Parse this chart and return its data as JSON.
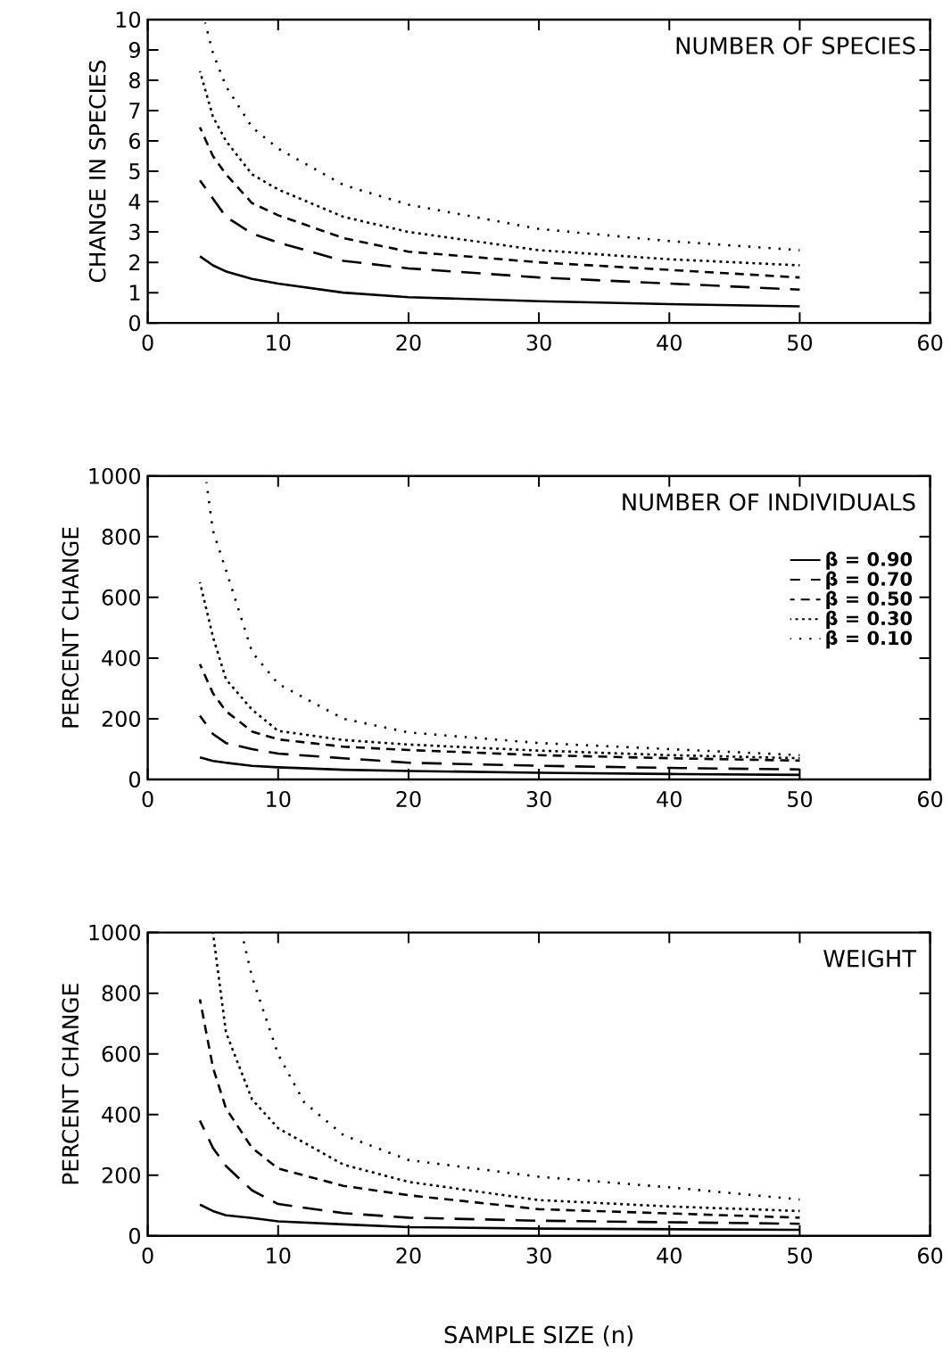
{
  "chart_data": [
    {
      "type": "line",
      "title": "NUMBER OF SPECIES",
      "ylabel": "CHANGE IN SPECIES",
      "xlim": [
        0,
        60
      ],
      "ylim": [
        0,
        10
      ],
      "xticks": [
        0,
        10,
        20,
        30,
        40,
        50,
        60
      ],
      "yticks": [
        0,
        1,
        2,
        3,
        4,
        5,
        6,
        7,
        8,
        9,
        10
      ],
      "x": [
        4,
        5,
        6,
        8,
        10,
        15,
        20,
        30,
        40,
        50
      ],
      "series": [
        {
          "color": "#000000",
          "line_style": "solid",
          "values": [
            2.2,
            1.9,
            1.7,
            1.45,
            1.3,
            1.0,
            0.85,
            0.72,
            0.62,
            0.55
          ]
        },
        {
          "color": "#000000",
          "line_style": "dashed",
          "values": [
            4.7,
            4.1,
            3.5,
            2.95,
            2.65,
            2.05,
            1.8,
            1.5,
            1.3,
            1.1
          ]
        },
        {
          "color": "#000000",
          "line_style": "dashed",
          "values": [
            6.45,
            5.5,
            4.9,
            3.95,
            3.55,
            2.8,
            2.35,
            2.0,
            1.75,
            1.5
          ]
        },
        {
          "color": "#000000",
          "line_style": "dotted",
          "values": [
            8.3,
            6.8,
            6.0,
            4.9,
            4.4,
            3.5,
            3.0,
            2.4,
            2.1,
            1.9
          ]
        },
        {
          "color": "#000000",
          "line_style": "dotted",
          "x": [
            4.4,
            5,
            6,
            8,
            10,
            15,
            20,
            30,
            40,
            50
          ],
          "values": [
            9.9,
            8.9,
            7.8,
            6.45,
            5.75,
            4.55,
            3.9,
            3.1,
            2.7,
            2.4
          ]
        }
      ]
    },
    {
      "type": "line",
      "title": "NUMBER OF INDIVIDUALS",
      "ylabel": "PERCENT CHANGE",
      "legend": "top right",
      "xlim": [
        0,
        60
      ],
      "ylim": [
        0,
        1000
      ],
      "xticks": [
        0,
        10,
        20,
        30,
        40,
        50,
        60
      ],
      "yticks": [
        0,
        200,
        400,
        600,
        800,
        1000
      ],
      "x": [
        4,
        5,
        6,
        8,
        10,
        15,
        20,
        30,
        40,
        50
      ],
      "series": [
        {
          "name": "β = 0.90",
          "color": "#000000",
          "line_style": "solid",
          "values": [
            73,
            61,
            55,
            45,
            40,
            32,
            28,
            22,
            18,
            15
          ]
        },
        {
          "name": "β = 0.70",
          "color": "#000000",
          "line_style": "dashed",
          "values": [
            210,
            150,
            120,
            100,
            85,
            70,
            55,
            45,
            38,
            33
          ]
        },
        {
          "name": "β = 0.50",
          "color": "#000000",
          "line_style": "dashed",
          "values": [
            380,
            284,
            225,
            158,
            132,
            108,
            97,
            80,
            70,
            62
          ]
        },
        {
          "name": "β = 0.30",
          "color": "#000000",
          "line_style": "dotted",
          "values": [
            650,
            470,
            330,
            230,
            160,
            130,
            115,
            95,
            80,
            70
          ]
        },
        {
          "name": "β = 0.10",
          "color": "#000000",
          "line_style": "dotted",
          "x": [
            4.5,
            5,
            6,
            8,
            10,
            15,
            20,
            30,
            40,
            50
          ],
          "values": [
            980,
            820,
            690,
            420,
            315,
            200,
            155,
            120,
            100,
            80
          ]
        }
      ]
    },
    {
      "type": "line",
      "title": "WEIGHT",
      "ylabel": "PERCENT CHANGE",
      "xlabel": "SAMPLE SIZE (n)",
      "xlim": [
        0,
        60
      ],
      "ylim": [
        0,
        1000
      ],
      "xticks": [
        0,
        10,
        20,
        30,
        40,
        50,
        60
      ],
      "yticks": [
        0,
        200,
        400,
        600,
        800,
        1000
      ],
      "x": [
        4,
        5,
        6,
        8,
        10,
        15,
        20,
        30,
        40,
        50
      ],
      "series": [
        {
          "color": "#000000",
          "line_style": "solid",
          "values": [
            103,
            82,
            68,
            59,
            48,
            38,
            29,
            24,
            22,
            20
          ]
        },
        {
          "color": "#000000",
          "line_style": "dashed",
          "values": [
            380,
            290,
            230,
            150,
            105,
            75,
            60,
            50,
            45,
            40
          ]
        },
        {
          "color": "#000000",
          "line_style": "dashed",
          "values": [
            780,
            555,
            420,
            290,
            222,
            165,
            134,
            88,
            74,
            60
          ]
        },
        {
          "color": "#000000",
          "line_style": "dotted",
          "x": [
            5,
            6,
            8,
            10,
            15,
            20,
            30,
            40,
            50
          ],
          "values": [
            1000,
            670,
            450,
            355,
            235,
            178,
            118,
            97,
            82
          ]
        },
        {
          "color": "#000000",
          "line_style": "dotted",
          "x": [
            7.2,
            8,
            10,
            12,
            15,
            20,
            30,
            40,
            50
          ],
          "values": [
            1000,
            853,
            598,
            440,
            332,
            250,
            195,
            160,
            120
          ]
        }
      ]
    }
  ]
}
